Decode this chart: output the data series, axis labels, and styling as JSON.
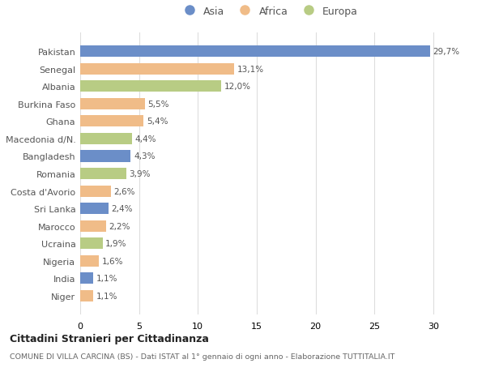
{
  "categories": [
    "Pakistan",
    "Senegal",
    "Albania",
    "Burkina Faso",
    "Ghana",
    "Macedonia d/N.",
    "Bangladesh",
    "Romania",
    "Costa d'Avorio",
    "Sri Lanka",
    "Marocco",
    "Ucraina",
    "Nigeria",
    "India",
    "Niger"
  ],
  "values": [
    29.7,
    13.1,
    12.0,
    5.5,
    5.4,
    4.4,
    4.3,
    3.9,
    2.6,
    2.4,
    2.2,
    1.9,
    1.6,
    1.1,
    1.1
  ],
  "labels": [
    "29,7%",
    "13,1%",
    "12,0%",
    "5,5%",
    "5,4%",
    "4,4%",
    "4,3%",
    "3,9%",
    "2,6%",
    "2,4%",
    "2,2%",
    "1,9%",
    "1,6%",
    "1,1%",
    "1,1%"
  ],
  "continents": [
    "Asia",
    "Africa",
    "Europa",
    "Africa",
    "Africa",
    "Europa",
    "Asia",
    "Europa",
    "Africa",
    "Asia",
    "Africa",
    "Europa",
    "Africa",
    "Asia",
    "Africa"
  ],
  "colors": {
    "Asia": "#6b8ec8",
    "Africa": "#f0bc88",
    "Europa": "#b8cc84"
  },
  "xlim": [
    0,
    32
  ],
  "xticks": [
    0,
    5,
    10,
    15,
    20,
    25,
    30
  ],
  "title1": "Cittadini Stranieri per Cittadinanza",
  "title2": "COMUNE DI VILLA CARCINA (BS) - Dati ISTAT al 1° gennaio di ogni anno - Elaborazione TUTTITALIA.IT",
  "bg_color": "#ffffff"
}
